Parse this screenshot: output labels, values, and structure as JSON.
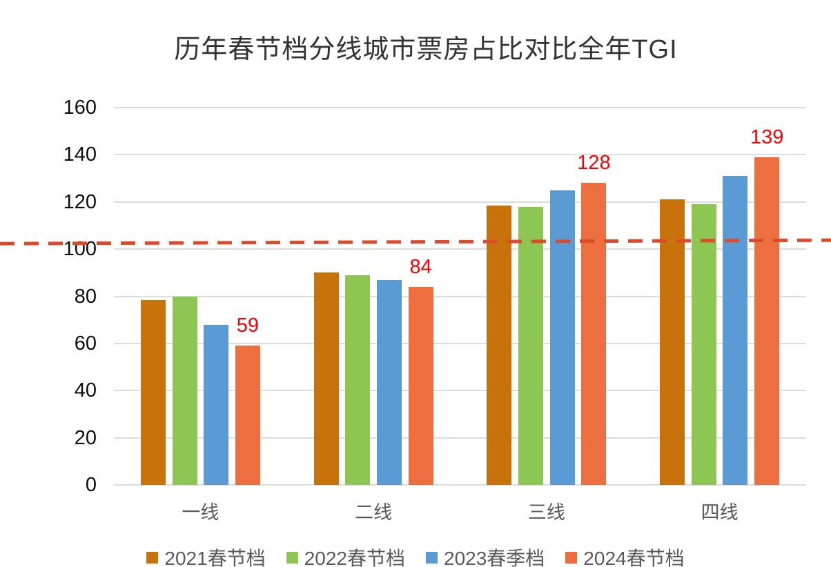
{
  "chart_data": {
    "type": "bar",
    "title": "历年春节档分线城市票房占比对比全年TGI",
    "categories": [
      "一线",
      "二线",
      "三线",
      "四线"
    ],
    "series": [
      {
        "name": "2021春节档",
        "color": "#C8720B",
        "values": [
          78.5,
          90,
          118.5,
          121
        ]
      },
      {
        "name": "2022春节档",
        "color": "#8DC653",
        "values": [
          80,
          89,
          118,
          119
        ]
      },
      {
        "name": "2023春季档",
        "color": "#5B9BD5",
        "values": [
          68,
          87,
          125,
          131
        ]
      },
      {
        "name": "2024春节档",
        "color": "#ED6E3E",
        "values": [
          59,
          84,
          128,
          139
        ]
      }
    ],
    "data_labels": {
      "series": "2024春节档",
      "values": [
        "59",
        "84",
        "128",
        "139"
      ],
      "color": "#FF0000"
    },
    "y_axis": {
      "min": 0,
      "max": 160,
      "step": 20,
      "ticks": [
        "0",
        "20",
        "40",
        "60",
        "80",
        "100",
        "120",
        "140",
        "160"
      ]
    },
    "reference_line": {
      "style": "dashed",
      "color": "#DD4A2A",
      "start_value": 102.3,
      "end_value": 103.8
    },
    "grid": true,
    "legend_position": "bottom",
    "xlabel": "",
    "ylabel": "",
    "ylim": [
      0,
      160
    ]
  },
  "colors": {
    "background": "#FFFFFF",
    "gridline": "#DCDCDC",
    "title_text": "#333333",
    "y_tick_text": "#0D0D0D",
    "x_tick_text": "#595959",
    "legend_text": "#595959"
  }
}
